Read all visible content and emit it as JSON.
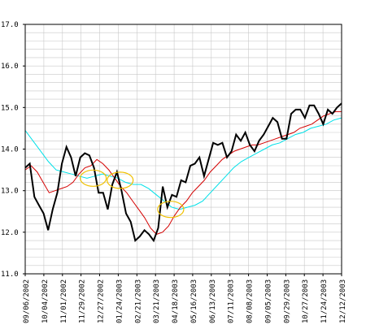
{
  "chart_data": {
    "type": "line",
    "title": "",
    "xlabel": "",
    "ylabel": "",
    "ylim": [
      11.0,
      17.0
    ],
    "y_ticks": [
      "11.0",
      "12.0",
      "13.0",
      "14.0",
      "15.0",
      "16.0",
      "17.0"
    ],
    "x_ticks": [
      "09/06/2002",
      "10/04/2002",
      "11/01/2002",
      "11/29/2002",
      "12/27/2002",
      "01/24/2003",
      "02/21/2003",
      "03/21/2003",
      "04/18/2003",
      "05/16/2003",
      "06/13/2003",
      "07/11/2003",
      "08/08/2003",
      "09/05/2003",
      "09/29/2003",
      "10/27/2003",
      "11/24/2003",
      "12/12/2003"
    ],
    "grid": true,
    "colors": {
      "price": "#000000",
      "short_ma": "#d40000",
      "long_ma": "#00e0e8",
      "highlight": "#f0c000",
      "grid": "#c8c8c8"
    },
    "series": [
      {
        "key": "price",
        "values": [
          13.55,
          13.65,
          12.85,
          12.65,
          12.45,
          12.05,
          12.55,
          12.95,
          13.65,
          14.05,
          13.8,
          13.35,
          13.8,
          13.9,
          13.85,
          13.55,
          12.95,
          12.95,
          12.55,
          13.15,
          13.45,
          13.0,
          12.45,
          12.25,
          11.8,
          11.9,
          12.05,
          11.95,
          11.8,
          12.1,
          13.1,
          12.6,
          12.9,
          12.85,
          13.25,
          13.2,
          13.6,
          13.65,
          13.8,
          13.35,
          13.75,
          14.15,
          14.1,
          14.15,
          13.8,
          13.95,
          14.35,
          14.2,
          14.4,
          14.1,
          13.95,
          14.2,
          14.35,
          14.55,
          14.75,
          14.65,
          14.25,
          14.25,
          14.85,
          14.95,
          14.95,
          14.75,
          15.05,
          15.05,
          14.85,
          14.6,
          14.95,
          14.85,
          15.0,
          15.1
        ]
      },
      {
        "key": "short_ma",
        "values": [
          13.5,
          13.6,
          13.45,
          13.2,
          12.95,
          13.0,
          13.05,
          13.1,
          13.2,
          13.4,
          13.55,
          13.6,
          13.75,
          13.65,
          13.5,
          13.3,
          13.1,
          12.95,
          12.75,
          12.55,
          12.35,
          12.1,
          11.95,
          12.0,
          12.15,
          12.4,
          12.6,
          12.75,
          12.95,
          13.1,
          13.25,
          13.45,
          13.6,
          13.75,
          13.85,
          13.95,
          14.0,
          14.05,
          14.1,
          14.1,
          14.15,
          14.2,
          14.25,
          14.3,
          14.35,
          14.4,
          14.5,
          14.55,
          14.6,
          14.7,
          14.8,
          14.85,
          14.9,
          14.9
        ]
      },
      {
        "key": "long_ma",
        "values": [
          14.45,
          14.2,
          13.95,
          13.7,
          13.5,
          13.45,
          13.4,
          13.35,
          13.3,
          13.35,
          13.4,
          13.35,
          13.3,
          13.2,
          13.15,
          13.15,
          13.05,
          12.9,
          12.75,
          12.6,
          12.55,
          12.6,
          12.65,
          12.75,
          12.95,
          13.15,
          13.35,
          13.55,
          13.7,
          13.8,
          13.9,
          14.0,
          14.1,
          14.15,
          14.25,
          14.35,
          14.4,
          14.5,
          14.55,
          14.6,
          14.7,
          14.75
        ]
      }
    ],
    "highlights": [
      {
        "x_index": 0.215,
        "y": 13.3
      },
      {
        "x_index": 0.3,
        "y": 13.25
      },
      {
        "x_index": 0.46,
        "y": 12.55
      }
    ]
  }
}
